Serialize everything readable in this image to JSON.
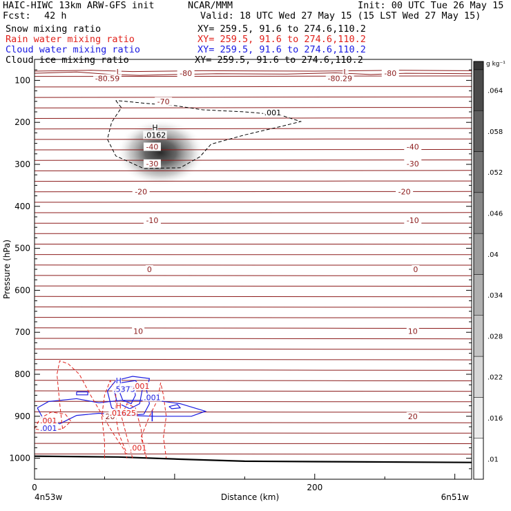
{
  "header": {
    "model": "HAIC-HIWC 13km ARW-GFS init",
    "org": "NCAR/MMM",
    "init": "Init: 00 UTC Tue 26 May 15",
    "fcst_label": "Fcst:",
    "fcst_value": "42 h",
    "valid": "Valid: 18 UTC Wed 27 May 15 (15 LST Wed 27 May 15)"
  },
  "fields": [
    {
      "name": "Snow mixing ratio",
      "xy": "XY= 259.5, 91.6 to 274.6,110.2",
      "color": "#000000"
    },
    {
      "name": "Rain water mixing ratio",
      "xy": "XY= 259.5, 91.6 to 274.6,110.2",
      "color": "#e0201a"
    },
    {
      "name": "Cloud water mixing ratio",
      "xy": "XY= 259.5, 91.6 to 274.6,110.2",
      "color": "#1a1ae0"
    },
    {
      "name": "Cloud ice mixing ratio",
      "xy": "XY= 259.5, 91.6 to 274.6,110.2",
      "color": "#000000"
    }
  ],
  "chart_data": {
    "type": "contour-cross-section",
    "xlabel": "Distance (km)",
    "ylabel": "Pressure (hPa)",
    "x_ticks": [
      0,
      200
    ],
    "xlim": [
      0,
      312
    ],
    "y_ticks": [
      100,
      200,
      300,
      400,
      500,
      600,
      700,
      800,
      900,
      1000
    ],
    "ylim": [
      50,
      1050
    ],
    "y_scale": "linear, inverted",
    "x_endpoints": {
      "left": "4n53w",
      "right": "6n51w"
    },
    "colorbar": {
      "units": "g kg⁻¹",
      "levels": [
        0.01,
        0.016,
        0.022,
        0.028,
        0.034,
        0.04,
        0.046,
        0.052,
        0.058,
        0.064
      ],
      "labels": [
        ".01",
        ".016",
        ".022",
        ".028",
        ".034",
        ".04",
        ".046",
        ".052",
        ".058",
        ".064"
      ]
    },
    "temperature_labels": [
      {
        "text": "-80",
        "x": 108,
        "p": 83
      },
      {
        "text": "-80",
        "x": 254,
        "p": 83
      },
      {
        "text": "-70",
        "x": 92,
        "p": 150
      },
      {
        "text": "-40",
        "x": 84,
        "p": 258
      },
      {
        "text": "-40",
        "x": 270,
        "p": 258
      },
      {
        "text": "-30",
        "x": 84,
        "p": 298
      },
      {
        "text": "-30",
        "x": 270,
        "p": 298
      },
      {
        "text": "-20",
        "x": 76,
        "p": 365
      },
      {
        "text": "-20",
        "x": 264,
        "p": 365
      },
      {
        "text": "-10",
        "x": 84,
        "p": 433
      },
      {
        "text": "-10",
        "x": 270,
        "p": 433
      },
      {
        "text": "0",
        "x": 82,
        "p": 550
      },
      {
        "text": "0",
        "x": 272,
        "p": 550
      },
      {
        "text": "10",
        "x": 74,
        "p": 697
      },
      {
        "text": "10",
        "x": 270,
        "p": 697
      },
      {
        "text": "20",
        "x": 54,
        "p": 900
      },
      {
        "text": "20",
        "x": 270,
        "p": 900
      }
    ],
    "extrema_labels": [
      {
        "text": "L",
        "x": 60,
        "p": 80,
        "color": "#8b1a1a"
      },
      {
        "text": "-80.59",
        "x": 52,
        "p": 95,
        "color": "#8b1a1a"
      },
      {
        "text": "L",
        "x": 222,
        "p": 80,
        "color": "#8b1a1a"
      },
      {
        "text": "-80.29",
        "x": 218,
        "p": 95,
        "color": "#8b1a1a"
      },
      {
        "text": "H",
        "x": 86,
        "p": 212,
        "color": "#000000"
      },
      {
        "text": ".0162",
        "x": 86,
        "p": 230,
        "color": "#000000"
      },
      {
        "text": ".001",
        "x": 170,
        "p": 177,
        "color": "#000000"
      },
      {
        "text": "H",
        "x": 60,
        "p": 815,
        "color": "#1a1ae0"
      },
      {
        "text": ".5373",
        "x": 64,
        "p": 835,
        "color": "#1a1ae0"
      },
      {
        "text": "H",
        "x": 60,
        "p": 875,
        "color": "#e0201a"
      },
      {
        "text": ".01625",
        "x": 63,
        "p": 892,
        "color": "#e0201a"
      },
      {
        "text": ".001",
        "x": 76,
        "p": 828,
        "color": "#e0201a"
      },
      {
        "text": ".001",
        "x": 84,
        "p": 855,
        "color": "#1a1ae0"
      },
      {
        "text": ".001",
        "x": 10,
        "p": 910,
        "color": "#e0201a"
      },
      {
        "text": ".001",
        "x": 10,
        "p": 928,
        "color": "#1a1ae0"
      },
      {
        "text": ".001",
        "x": 74,
        "p": 975,
        "color": "#e0201a"
      }
    ]
  }
}
